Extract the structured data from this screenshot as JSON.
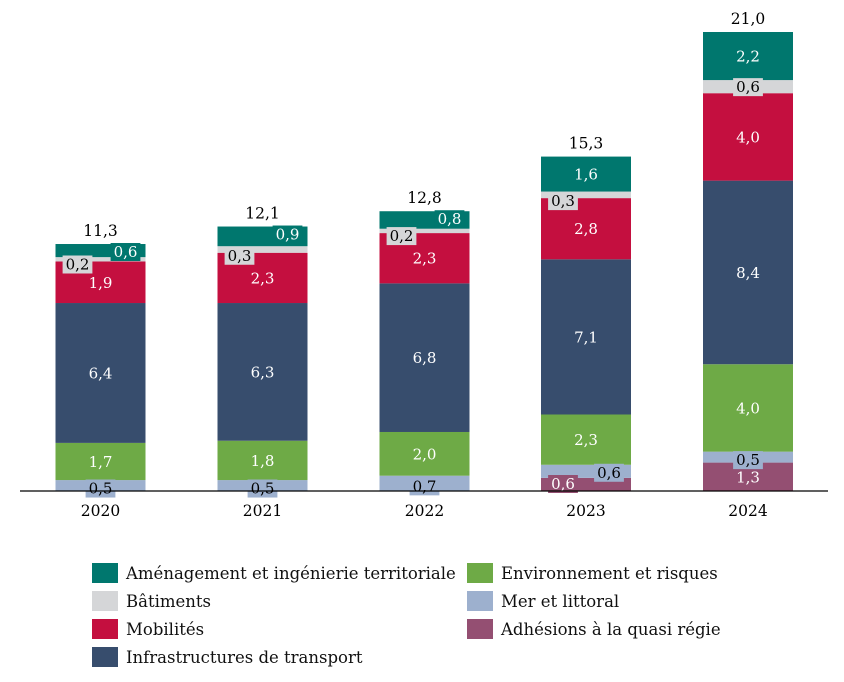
{
  "chart_data": {
    "type": "bar",
    "stacked": true,
    "title": "",
    "xlabel": "",
    "ylabel": "",
    "ylim": [
      0,
      21.0
    ],
    "grid": false,
    "categories": [
      "2020",
      "2021",
      "2022",
      "2023",
      "2024"
    ],
    "series": [
      {
        "name": "Adhésions à la quasi régie",
        "color": "#944F72",
        "label_color": "#ffffff",
        "values": [
          0,
          0,
          0,
          0.6,
          1.3
        ],
        "labels": [
          "",
          "",
          "",
          "0,6",
          "1,3"
        ]
      },
      {
        "name": "Mer et littoral",
        "color": "#9DB0CE",
        "label_color": "#000000",
        "values": [
          0.5,
          0.5,
          0.7,
          0.6,
          0.5
        ],
        "labels": [
          "0,5",
          "0,5",
          "0,7",
          "0,6",
          "0,5"
        ]
      },
      {
        "name": "Environnement et risques",
        "color": "#6EAA46",
        "label_color": "#ffffff",
        "values": [
          1.7,
          1.8,
          2.0,
          2.3,
          4.0
        ],
        "labels": [
          "1,7",
          "1,8",
          "2,0",
          "2,3",
          "4,0"
        ]
      },
      {
        "name": "Infrastructures de transport",
        "color": "#374D6D",
        "label_color": "#ffffff",
        "values": [
          6.4,
          6.3,
          6.8,
          7.1,
          8.4
        ],
        "labels": [
          "6,4",
          "6,3",
          "6,8",
          "7,1",
          "8,4"
        ]
      },
      {
        "name": "Mobilités",
        "color": "#C40F3F",
        "label_color": "#ffffff",
        "values": [
          1.9,
          2.3,
          2.3,
          2.8,
          4.0
        ],
        "labels": [
          "1,9",
          "2,3",
          "2,3",
          "2,8",
          "4,0"
        ]
      },
      {
        "name": "Bâtiments",
        "color": "#D5D6D8",
        "label_color": "#000000",
        "values": [
          0.2,
          0.3,
          0.2,
          0.3,
          0.6
        ],
        "labels": [
          "0,2",
          "0,3",
          "0,2",
          "0,3",
          "0,6"
        ]
      },
      {
        "name": "Aménagement et ingénierie territoriale",
        "color": "#00776E",
        "label_color": "#ffffff",
        "values": [
          0.6,
          0.9,
          0.8,
          1.6,
          2.2
        ],
        "labels": [
          "0,6",
          "0,9",
          "0,8",
          "1,6",
          "2,2"
        ]
      }
    ],
    "totals": [
      "11,3",
      "12,1",
      "12,8",
      "15,3",
      "21,0"
    ],
    "legend": {
      "placement": "bottom",
      "columns": [
        [
          "Aménagement et ingénierie territoriale",
          "Bâtiments",
          "Mobilités",
          "Infrastructures de transport"
        ],
        [
          "Environnement et risques",
          "Mer et littoral",
          "Adhésions à la quasi régie"
        ]
      ]
    }
  },
  "legend_items": [
    {
      "label": "Aménagement et ingénierie territoriale",
      "color": "#00776E"
    },
    {
      "label": "Bâtiments",
      "color": "#D5D6D8"
    },
    {
      "label": "Mobilités",
      "color": "#C40F3F"
    },
    {
      "label": "Infrastructures de transport",
      "color": "#374D6D"
    },
    {
      "label": "Environnement et risques",
      "color": "#6EAA46"
    },
    {
      "label": "Mer et littoral",
      "color": "#9DB0CE"
    },
    {
      "label": "Adhésions à la quasi régie",
      "color": "#944F72"
    }
  ]
}
